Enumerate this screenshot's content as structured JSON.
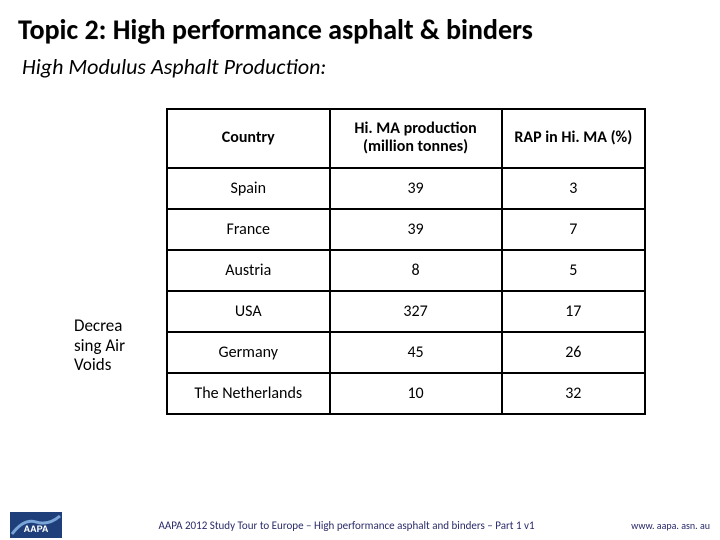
{
  "title": "Topic 2: High performance asphalt & binders",
  "subtitle": "High Modulus Asphalt Production:",
  "side_label": "Decrea sing Air Voids",
  "table": {
    "columns": [
      "Country",
      "Hi. MA production (million tonnes)",
      "RAP in Hi. MA (%)"
    ],
    "rows": [
      [
        "Spain",
        "39",
        "3"
      ],
      [
        "France",
        "39",
        "7"
      ],
      [
        "Austria",
        "8",
        "5"
      ],
      [
        "USA",
        "327",
        "17"
      ],
      [
        "Germany",
        "45",
        "26"
      ],
      [
        "The Netherlands",
        "10",
        "32"
      ]
    ],
    "col_widths": [
      "34%",
      "36%",
      "30%"
    ],
    "border_color": "#000000",
    "header_fontsize": 16,
    "cell_fontsize": 16
  },
  "footer": {
    "center": "AAPA 2012 Study Tour to Europe – High performance asphalt and binders – Part 1 v1",
    "right": "www. aapa. asn. au"
  },
  "logo": {
    "name": "AAPA",
    "bg_color": "#1f3f7a",
    "accent": "#7aa5d8"
  }
}
